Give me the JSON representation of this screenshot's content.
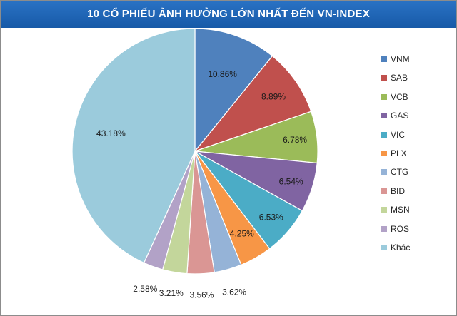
{
  "chart_data": {
    "type": "pie",
    "title": "10 CỔ PHIẾU ẢNH HƯỞNG LỚN NHẤT ĐẾN VN-INDEX",
    "categories": [
      "VNM",
      "SAB",
      "VCB",
      "GAS",
      "VIC",
      "PLX",
      "CTG",
      "BID",
      "MSN",
      "ROS",
      "Khác"
    ],
    "values": [
      10.86,
      8.89,
      6.78,
      6.54,
      6.53,
      4.25,
      3.62,
      3.56,
      3.21,
      2.58,
      43.18
    ],
    "data_labels": [
      "10.86%",
      "8.89%",
      "6.78%",
      "6.54%",
      "6.53%",
      "4.25%",
      "3.62%",
      "3.56%",
      "3.21%",
      "2.58%",
      "43.18%"
    ],
    "colors": [
      "#4f81bd",
      "#c0504d",
      "#9bbb59",
      "#8064a2",
      "#4bacc6",
      "#f79646",
      "#95b3d7",
      "#da9694",
      "#c3d69b",
      "#b2a2c7",
      "#9bcbdc"
    ],
    "legend_position": "right"
  }
}
